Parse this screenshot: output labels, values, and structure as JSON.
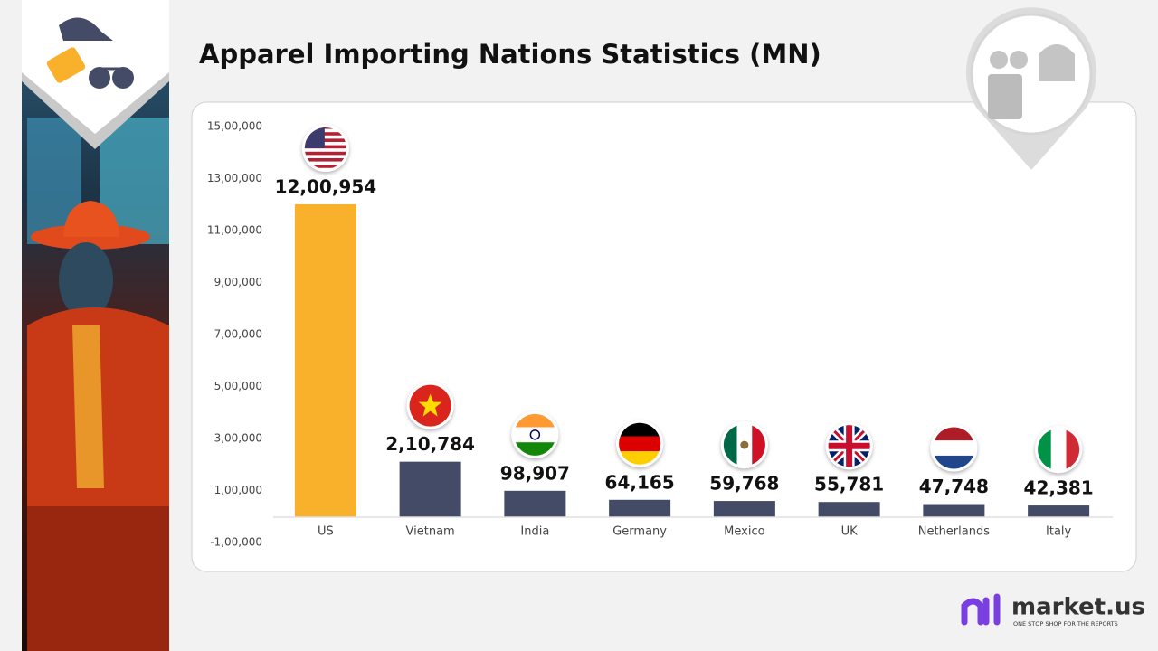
{
  "chart_data": {
    "type": "bar",
    "title": "Apparel Importing Nations Statistics (MN)",
    "categories": [
      "US",
      "Vietnam",
      "India",
      "Germany",
      "Mexico",
      "UK",
      "Netherlands",
      "Italy"
    ],
    "values": [
      1200954,
      210784,
      98907,
      64165,
      59768,
      55781,
      47748,
      42381
    ],
    "value_labels": [
      "12,00,954",
      "2,10,784",
      "98,907",
      "64,165",
      "59,768",
      "55,781",
      "47,748",
      "42,381"
    ],
    "colors": [
      "#f9b02a",
      "#434b66",
      "#434b66",
      "#434b66",
      "#434b66",
      "#434b66",
      "#434b66",
      "#434b66"
    ],
    "ylim": [
      -100000,
      1500000
    ],
    "yticks": [
      {
        "value": -100000,
        "label": "-1,00,000"
      },
      {
        "value": 100000,
        "label": "1,00,000"
      },
      {
        "value": 300000,
        "label": "3,00,000"
      },
      {
        "value": 500000,
        "label": "5,00,000"
      },
      {
        "value": 700000,
        "label": "7,00,000"
      },
      {
        "value": 900000,
        "label": "9,00,000"
      },
      {
        "value": 1100000,
        "label": "11,00,000"
      },
      {
        "value": 1300000,
        "label": "13,00,000"
      },
      {
        "value": 1500000,
        "label": "15,00,000"
      }
    ],
    "grid": false
  },
  "brand": {
    "name": "market.us",
    "tagline": "ONE STOP SHOP FOR THE REPORTS"
  }
}
